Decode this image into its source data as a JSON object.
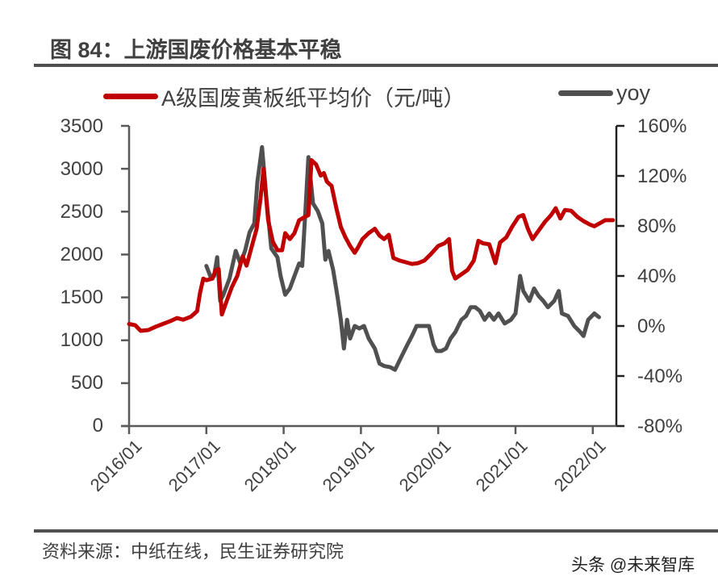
{
  "header": {
    "title": "图 84：上游国废价格基本平稳"
  },
  "legend": {
    "items": [
      {
        "label": "A级国废黄板纸平均价（元/吨）",
        "color": "#C00000"
      },
      {
        "label": "yoy",
        "color": "#505050"
      }
    ]
  },
  "footer": {
    "source": "资料来源：中纸在线，民生证券研究院",
    "watermark": "头条 @未来智库"
  },
  "colors": {
    "price_line": "#C00000",
    "yoy_line": "#505050",
    "axis": "#595959",
    "text": "#404040"
  },
  "chart_data": {
    "type": "line",
    "title": "图 84：上游国废价格基本平稳",
    "xlabel": "",
    "ylabel": "元/吨",
    "y2label": "yoy",
    "ylim": [
      0,
      3500
    ],
    "y2lim": [
      -80,
      160
    ],
    "yticks": [
      "0",
      "500",
      "1000",
      "1500",
      "2000",
      "2500",
      "3000",
      "3500"
    ],
    "y2ticks": [
      "-80%",
      "-40%",
      "0%",
      "40%",
      "80%",
      "120%",
      "160%"
    ],
    "xticks": [
      "2016/01",
      "2017/01",
      "2018/01",
      "2019/01",
      "2020/01",
      "2021/01",
      "2022/01"
    ],
    "grid": false,
    "legend_position": "top",
    "series": [
      {
        "name": "A级国废黄板纸平均价（元/吨）",
        "axis": "left",
        "color": "#C00000",
        "points": [
          [
            2016.0,
            1190
          ],
          [
            2016.08,
            1175
          ],
          [
            2016.15,
            1110
          ],
          [
            2016.25,
            1120
          ],
          [
            2016.35,
            1160
          ],
          [
            2016.45,
            1195
          ],
          [
            2016.55,
            1230
          ],
          [
            2016.62,
            1260
          ],
          [
            2016.7,
            1240
          ],
          [
            2016.8,
            1275
          ],
          [
            2016.88,
            1340
          ],
          [
            2016.92,
            1560
          ],
          [
            2016.96,
            1720
          ],
          [
            2017.0,
            1700
          ],
          [
            2017.08,
            1720
          ],
          [
            2017.12,
            1820
          ],
          [
            2017.16,
            1830
          ],
          [
            2017.2,
            1300
          ],
          [
            2017.26,
            1450
          ],
          [
            2017.33,
            1620
          ],
          [
            2017.4,
            1750
          ],
          [
            2017.47,
            1980
          ],
          [
            2017.52,
            1870
          ],
          [
            2017.58,
            2070
          ],
          [
            2017.65,
            2300
          ],
          [
            2017.7,
            2650
          ],
          [
            2017.74,
            3000
          ],
          [
            2017.8,
            2400
          ],
          [
            2017.86,
            2150
          ],
          [
            2017.92,
            2050
          ],
          [
            2017.98,
            2050
          ],
          [
            2018.02,
            2250
          ],
          [
            2018.08,
            2180
          ],
          [
            2018.14,
            2250
          ],
          [
            2018.2,
            2400
          ],
          [
            2018.26,
            2430
          ],
          [
            2018.32,
            2460
          ],
          [
            2018.36,
            3100
          ],
          [
            2018.42,
            3050
          ],
          [
            2018.48,
            2920
          ],
          [
            2018.52,
            2950
          ],
          [
            2018.56,
            2850
          ],
          [
            2018.62,
            2800
          ],
          [
            2018.68,
            2550
          ],
          [
            2018.74,
            2320
          ],
          [
            2018.8,
            2200
          ],
          [
            2018.86,
            2100
          ],
          [
            2018.92,
            2020
          ],
          [
            2018.96,
            2080
          ],
          [
            2019.02,
            2180
          ],
          [
            2019.1,
            2250
          ],
          [
            2019.18,
            2300
          ],
          [
            2019.24,
            2220
          ],
          [
            2019.3,
            2180
          ],
          [
            2019.36,
            2230
          ],
          [
            2019.42,
            1960
          ],
          [
            2019.5,
            1930
          ],
          [
            2019.58,
            1910
          ],
          [
            2019.66,
            1890
          ],
          [
            2019.74,
            1900
          ],
          [
            2019.82,
            1930
          ],
          [
            2019.9,
            2000
          ],
          [
            2020.0,
            2100
          ],
          [
            2020.08,
            2130
          ],
          [
            2020.14,
            2180
          ],
          [
            2020.18,
            1810
          ],
          [
            2020.22,
            1720
          ],
          [
            2020.3,
            1770
          ],
          [
            2020.38,
            1820
          ],
          [
            2020.46,
            1930
          ],
          [
            2020.52,
            2160
          ],
          [
            2020.58,
            2130
          ],
          [
            2020.66,
            2120
          ],
          [
            2020.74,
            1900
          ],
          [
            2020.8,
            2140
          ],
          [
            2020.88,
            2200
          ],
          [
            2020.96,
            2330
          ],
          [
            2021.04,
            2440
          ],
          [
            2021.1,
            2460
          ],
          [
            2021.16,
            2300
          ],
          [
            2021.22,
            2180
          ],
          [
            2021.3,
            2280
          ],
          [
            2021.38,
            2380
          ],
          [
            2021.46,
            2460
          ],
          [
            2021.52,
            2540
          ],
          [
            2021.58,
            2420
          ],
          [
            2021.64,
            2520
          ],
          [
            2021.72,
            2510
          ],
          [
            2021.8,
            2440
          ],
          [
            2021.88,
            2390
          ],
          [
            2021.96,
            2350
          ],
          [
            2022.02,
            2330
          ],
          [
            2022.08,
            2360
          ],
          [
            2022.16,
            2400
          ],
          [
            2022.26,
            2400
          ]
        ]
      },
      {
        "name": "yoy",
        "axis": "right",
        "color": "#505050",
        "points": [
          [
            2017.0,
            48
          ],
          [
            2017.05,
            40
          ],
          [
            2017.1,
            40
          ],
          [
            2017.14,
            55
          ],
          [
            2017.18,
            20
          ],
          [
            2017.22,
            25
          ],
          [
            2017.3,
            38
          ],
          [
            2017.38,
            60
          ],
          [
            2017.44,
            50
          ],
          [
            2017.5,
            60
          ],
          [
            2017.56,
            75
          ],
          [
            2017.62,
            82
          ],
          [
            2017.66,
            115
          ],
          [
            2017.72,
            143
          ],
          [
            2017.78,
            100
          ],
          [
            2017.84,
            62
          ],
          [
            2017.92,
            55
          ],
          [
            2017.96,
            40
          ],
          [
            2018.02,
            25
          ],
          [
            2018.08,
            30
          ],
          [
            2018.14,
            40
          ],
          [
            2018.2,
            50
          ],
          [
            2018.24,
            48
          ],
          [
            2018.28,
            90
          ],
          [
            2018.32,
            135
          ],
          [
            2018.38,
            98
          ],
          [
            2018.44,
            92
          ],
          [
            2018.5,
            82
          ],
          [
            2018.54,
            53
          ],
          [
            2018.58,
            60
          ],
          [
            2018.64,
            45
          ],
          [
            2018.7,
            22
          ],
          [
            2018.74,
            5
          ],
          [
            2018.78,
            -18
          ],
          [
            2018.82,
            5
          ],
          [
            2018.86,
            -10
          ],
          [
            2018.92,
            0
          ],
          [
            2018.98,
            -2
          ],
          [
            2019.04,
            0
          ],
          [
            2019.1,
            -10
          ],
          [
            2019.18,
            -18
          ],
          [
            2019.24,
            -30
          ],
          [
            2019.3,
            -32
          ],
          [
            2019.38,
            -33
          ],
          [
            2019.44,
            -35
          ],
          [
            2019.52,
            -25
          ],
          [
            2019.6,
            -15
          ],
          [
            2019.66,
            -8
          ],
          [
            2019.72,
            0
          ],
          [
            2019.8,
            0
          ],
          [
            2019.88,
            0
          ],
          [
            2019.94,
            -15
          ],
          [
            2019.98,
            -20
          ],
          [
            2020.04,
            -20
          ],
          [
            2020.1,
            -18
          ],
          [
            2020.16,
            -10
          ],
          [
            2020.22,
            -5
          ],
          [
            2020.3,
            5
          ],
          [
            2020.36,
            8
          ],
          [
            2020.42,
            15
          ],
          [
            2020.48,
            15
          ],
          [
            2020.54,
            12
          ],
          [
            2020.6,
            5
          ],
          [
            2020.66,
            10
          ],
          [
            2020.72,
            5
          ],
          [
            2020.78,
            10
          ],
          [
            2020.86,
            2
          ],
          [
            2020.94,
            5
          ],
          [
            2021.0,
            10
          ],
          [
            2021.06,
            40
          ],
          [
            2021.1,
            28
          ],
          [
            2021.18,
            20
          ],
          [
            2021.24,
            30
          ],
          [
            2021.3,
            24
          ],
          [
            2021.36,
            20
          ],
          [
            2021.42,
            15
          ],
          [
            2021.5,
            20
          ],
          [
            2021.56,
            28
          ],
          [
            2021.6,
            10
          ],
          [
            2021.68,
            8
          ],
          [
            2021.76,
            0
          ],
          [
            2021.84,
            -5
          ],
          [
            2021.88,
            -8
          ],
          [
            2021.94,
            5
          ],
          [
            2022.02,
            10
          ],
          [
            2022.08,
            7
          ]
        ]
      }
    ]
  }
}
